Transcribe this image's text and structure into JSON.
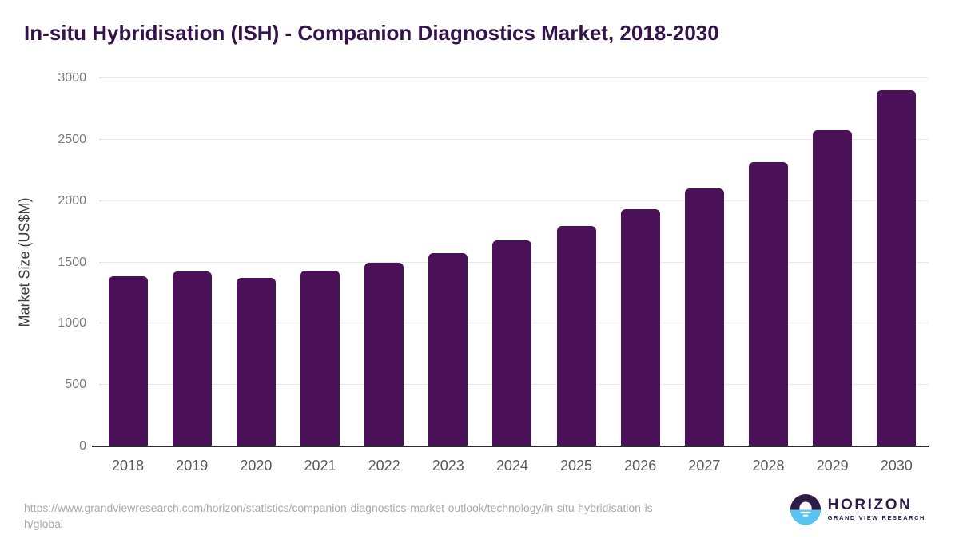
{
  "title": "In-situ Hybridisation (ISH) - Companion Diagnostics Market, 2018-2030",
  "chart_data": {
    "type": "bar",
    "title": "In-situ Hybridisation (ISH) - Companion Diagnostics Market, 2018-2030",
    "categories": [
      "2018",
      "2019",
      "2020",
      "2021",
      "2022",
      "2023",
      "2024",
      "2025",
      "2026",
      "2027",
      "2028",
      "2029",
      "2030"
    ],
    "values": [
      1385,
      1425,
      1375,
      1430,
      1495,
      1575,
      1680,
      1795,
      1935,
      2105,
      2315,
      2575,
      2905
    ],
    "xlabel": "",
    "ylabel": "Market Size (US$M)",
    "ylim": [
      0,
      3000
    ],
    "yticks": [
      0,
      500,
      1000,
      1500,
      2000,
      2500,
      3000
    ],
    "grid": "horizontal",
    "legend": "none",
    "bar_color": "#4a1158"
  },
  "footer": {
    "source_url_line1": "https://www.grandviewresearch.com/horizon/statistics/companion-diagnostics-market-outlook/technology/in-situ-hybridisation-is",
    "source_url_line2": "h/global"
  },
  "logo": {
    "name": "HORIZON",
    "subtitle": "GRAND VIEW RESEARCH"
  },
  "colors": {
    "bar": "#4a1158",
    "title_text": "#331349",
    "axis_line": "#2b2b2b",
    "gridline": "#e8e8e8",
    "y_tick_text": "#7a7a7a",
    "x_tick_text": "#595959",
    "y_axis_label_text": "#3f3f3f",
    "url_text": "#a9a9a9",
    "logo_purple": "#2e1a47",
    "logo_blue": "#56c5f2"
  }
}
